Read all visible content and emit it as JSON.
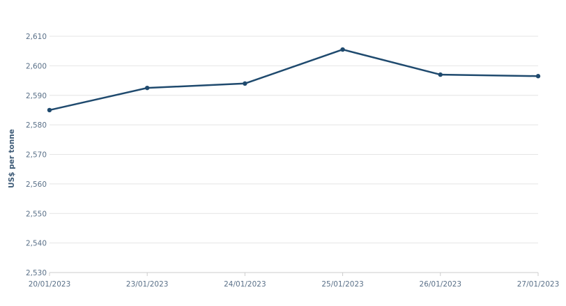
{
  "chart_data": {
    "type": "line",
    "title": "",
    "xlabel": "",
    "ylabel": "US$ per tonne",
    "categories": [
      "20/01/2023",
      "23/01/2023",
      "24/01/2023",
      "25/01/2023",
      "26/01/2023",
      "27/01/2023"
    ],
    "series": [
      {
        "values": [
          2585,
          2592.5,
          2594,
          2605.5,
          2597,
          2596.5
        ]
      }
    ],
    "ylim": [
      2530,
      2610
    ],
    "yticks": [
      2530,
      2540,
      2550,
      2560,
      2570,
      2580,
      2590,
      2600,
      2610
    ],
    "ytick_labels": [
      "2,530",
      "2,540",
      "2,550",
      "2,560",
      "2,570",
      "2,580",
      "2,590",
      "2,600",
      "2,610"
    ],
    "grid": true,
    "colors": {
      "line": "#1f4a6e",
      "grid": "#e4e4e4",
      "axis": "#cccccc",
      "text": "#5a7088"
    }
  }
}
